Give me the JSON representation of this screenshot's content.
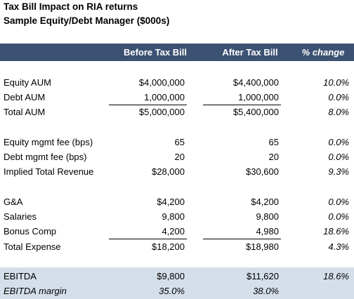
{
  "header": {
    "title": "Tax Bill Impact on RIA returns",
    "subtitle": "Sample Equity/Debt Manager ($000s)"
  },
  "table": {
    "columns": [
      "Before Tax Bill",
      "After Tax Bill",
      "% change"
    ],
    "sections": [
      {
        "rows": [
          [
            "Equity AUM",
            "$4,000,000",
            "$4,400,000",
            "10.0%"
          ],
          [
            "Debt AUM",
            "1,000,000",
            "1,000,000",
            "0.0%"
          ],
          [
            "Total AUM",
            "$5,000,000",
            "$5,400,000",
            "8.0%"
          ]
        ]
      },
      {
        "rows": [
          [
            "Equity mgmt fee (bps)",
            "65",
            "65",
            "0.0%"
          ],
          [
            "Debt mgmt fee (bps)",
            "20",
            "20",
            "0.0%"
          ],
          [
            "Implied Total Revenue",
            "$28,000",
            "$30,600",
            "9.3%"
          ]
        ]
      },
      {
        "rows": [
          [
            "G&A",
            "$4,200",
            "$4,200",
            "0.0%"
          ],
          [
            "Salaries",
            "9,800",
            "9,800",
            "0.0%"
          ],
          [
            "Bonus Comp",
            "4,200",
            "4,980",
            "18.6%"
          ],
          [
            "Total Expense",
            "$18,200",
            "$18,980",
            "4.3%"
          ]
        ]
      },
      {
        "rows": [
          [
            "EBITDA",
            "$9,800",
            "$11,620",
            "18.6%"
          ],
          [
            "EBITDA margin",
            "35.0%",
            "38.0%"
          ]
        ]
      }
    ]
  }
}
